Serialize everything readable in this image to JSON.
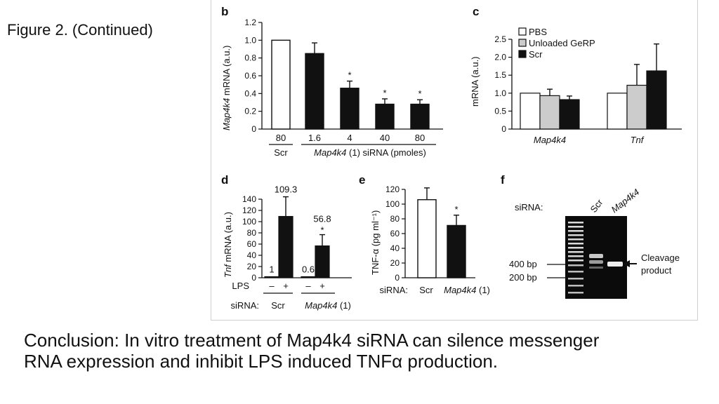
{
  "slide_title": "Figure 2. (Continued)",
  "conclusion": "Conclusion: In vitro treatment of Map4k4 siRNA can silence messenger RNA expression and inhibit LPS induced TNFα production.",
  "colors": {
    "white_bar": "#ffffff",
    "grey_bar": "#cccccc",
    "black_bar": "#111111"
  },
  "chart_data": [
    {
      "panel": "b",
      "type": "bar",
      "ylabel_italic": "Map4k4",
      "ylabel_rest": " mRNA (a.u.)",
      "ylim": [
        0,
        1.2
      ],
      "yticks": [
        "0",
        "0.2",
        "0.4",
        "0.6",
        "0.8",
        "1.0",
        "1.2"
      ],
      "categories": [
        "80",
        "1.6",
        "4",
        "40",
        "80"
      ],
      "values": [
        1.0,
        0.85,
        0.46,
        0.28,
        0.28
      ],
      "errors": [
        0,
        0.12,
        0.08,
        0.06,
        0.05
      ],
      "significant": [
        false,
        false,
        true,
        true,
        true
      ],
      "fills": [
        "white",
        "black",
        "black",
        "black",
        "black"
      ],
      "sig_mark": "*",
      "group_scr": "Scr",
      "group_map_italic": "Map4k4",
      "group_map_rest": " (1) siRNA (pmoles)"
    },
    {
      "panel": "c",
      "type": "bar",
      "ylabel": "mRNA (a.u.)",
      "ylim": [
        0,
        2.5
      ],
      "yticks": [
        "0",
        "0.5",
        "1.0",
        "1.5",
        "2.0",
        "2.5"
      ],
      "categories": [
        "Map4k4",
        "Tnf"
      ],
      "series": [
        {
          "name": "PBS",
          "values": [
            1.0,
            1.0
          ],
          "errors": [
            0,
            0
          ]
        },
        {
          "name": "Unloaded GeRP",
          "values": [
            0.93,
            1.22
          ],
          "errors": [
            0.18,
            0.58
          ]
        },
        {
          "name": "Scr",
          "values": [
            0.82,
            1.62
          ],
          "errors": [
            0.1,
            0.75
          ]
        }
      ],
      "legend_position": "top-left"
    },
    {
      "panel": "d",
      "type": "bar",
      "ylabel_italic": "Tnf",
      "ylabel_rest": " mRNA (a.u.)",
      "ylim": [
        0,
        140
      ],
      "yticks": [
        "0",
        "20",
        "40",
        "60",
        "80",
        "100",
        "120",
        "140"
      ],
      "lps_label": "LPS",
      "lps_signs": [
        "–",
        "+",
        "–",
        "+"
      ],
      "values": [
        1,
        109.3,
        0.6,
        56.8
      ],
      "value_labels": [
        "1",
        "109.3",
        "0.6",
        "56.8"
      ],
      "errors": [
        0,
        35,
        0,
        20
      ],
      "significant": [
        false,
        false,
        false,
        true
      ],
      "sig_mark": "*",
      "sirna_label": "siRNA:",
      "group_scr": "Scr",
      "group_map_italic": "Map4k4",
      "group_map_rest": " (1)"
    },
    {
      "panel": "e",
      "type": "bar",
      "ylabel": "TNF-α (pg ml⁻¹)",
      "ylim": [
        0,
        120
      ],
      "yticks": [
        "0",
        "20",
        "40",
        "60",
        "80",
        "100",
        "120"
      ],
      "values": [
        106,
        71
      ],
      "errors": [
        16,
        14
      ],
      "significant": [
        false,
        true
      ],
      "fills": [
        "white",
        "black"
      ],
      "sig_mark": "*",
      "sirna_label": "siRNA:",
      "group_scr": "Scr",
      "group_map_italic": "Map4k4",
      "group_map_rest": " (1)"
    },
    {
      "panel": "f",
      "type": "gel",
      "sirna_label": "siRNA:",
      "lane_labels": [
        "Scr",
        "Map4k4"
      ],
      "markers": [
        "400 bp",
        "200 bp"
      ],
      "annotation_line1": "Cleavage",
      "annotation_line2": "product"
    }
  ]
}
